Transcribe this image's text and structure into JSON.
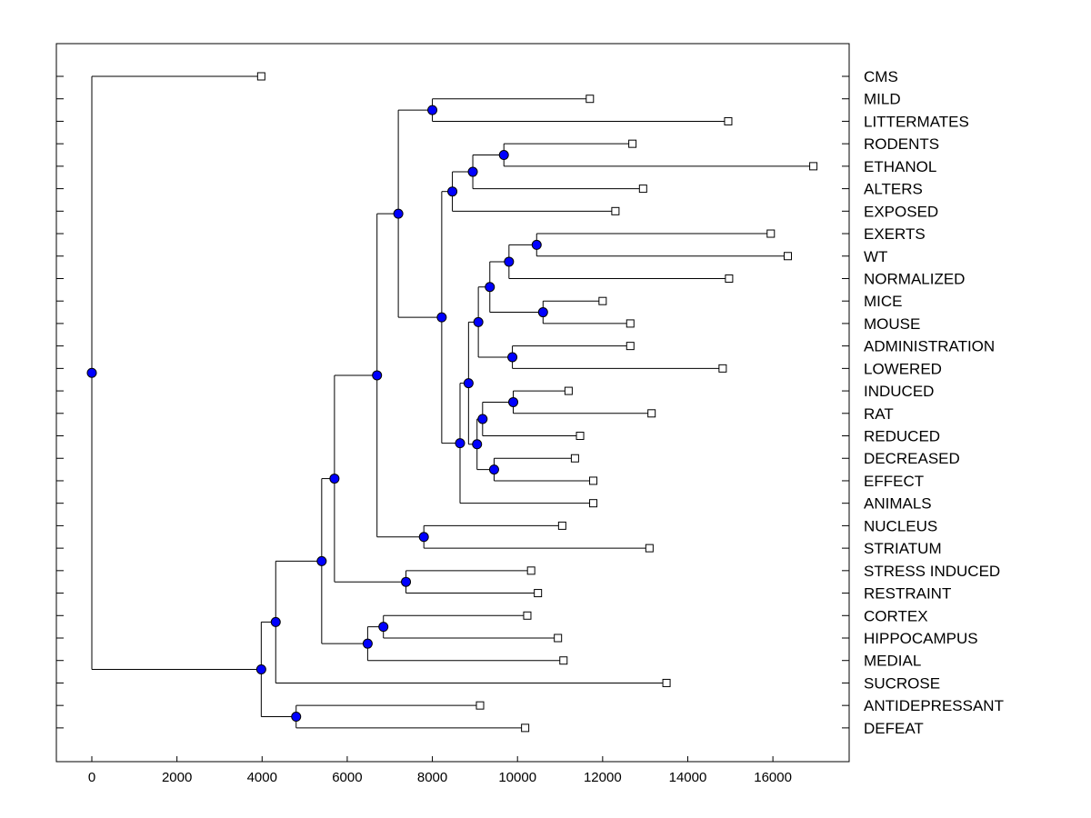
{
  "chart_data": {
    "type": "dendrogram",
    "title": "",
    "xlabel": "",
    "ylabel": "",
    "xlim": [
      -800,
      17800
    ],
    "x_ticks": [
      0,
      2000,
      4000,
      6000,
      8000,
      10000,
      12000,
      14000,
      16000
    ],
    "x_tick_labels": [
      "0",
      "2000",
      "4000",
      "6000",
      "8000",
      "10000",
      "12000",
      "14000",
      "16000"
    ],
    "leaves": [
      {
        "label": "CMS",
        "x": 3980
      },
      {
        "label": "MILD",
        "x": 11700
      },
      {
        "label": "LITTERMATES",
        "x": 14950
      },
      {
        "label": "RODENTS",
        "x": 12700
      },
      {
        "label": "ETHANOL",
        "x": 16950
      },
      {
        "label": "ALTERS",
        "x": 12950
      },
      {
        "label": "EXPOSED",
        "x": 12300
      },
      {
        "label": "EXERTS",
        "x": 15950
      },
      {
        "label": "WT",
        "x": 16350
      },
      {
        "label": "NORMALIZED",
        "x": 14970
      },
      {
        "label": "MICE",
        "x": 12000
      },
      {
        "label": "MOUSE",
        "x": 12650
      },
      {
        "label": "ADMINISTRATION",
        "x": 12650
      },
      {
        "label": "LOWERED",
        "x": 14820
      },
      {
        "label": "INDUCED",
        "x": 11200
      },
      {
        "label": "RAT",
        "x": 13150
      },
      {
        "label": "REDUCED",
        "x": 11470
      },
      {
        "label": "DECREASED",
        "x": 11350
      },
      {
        "label": "EFFECT",
        "x": 11780
      },
      {
        "label": "ANIMALS",
        "x": 11780
      },
      {
        "label": "NUCLEUS",
        "x": 11050
      },
      {
        "label": "STRIATUM",
        "x": 13100
      },
      {
        "label": "STRESS INDUCED",
        "x": 10320
      },
      {
        "label": "RESTRAINT",
        "x": 10480
      },
      {
        "label": "CORTEX",
        "x": 10230
      },
      {
        "label": "HIPPOCAMPUS",
        "x": 10950
      },
      {
        "label": "MEDIAL",
        "x": 11080
      },
      {
        "label": "SUCROSE",
        "x": 13500
      },
      {
        "label": "ANTIDEPRESSANT",
        "x": 9120
      },
      {
        "label": "DEFEAT",
        "x": 10180
      }
    ],
    "merges": [
      {
        "id": "n1",
        "x": 10450,
        "children": [
          "L7",
          "L8"
        ]
      },
      {
        "id": "n2",
        "x": 10600,
        "children": [
          "L10",
          "L11"
        ]
      },
      {
        "id": "n3",
        "x": 9680,
        "children": [
          "L3",
          "L4"
        ]
      },
      {
        "id": "n4",
        "x": 9880,
        "children": [
          "L12",
          "L13"
        ]
      },
      {
        "id": "n5",
        "x": 9900,
        "children": [
          "L14",
          "L15"
        ]
      },
      {
        "id": "n6",
        "x": 9800,
        "children": [
          "n1",
          "L9"
        ]
      },
      {
        "id": "n7",
        "x": 9450,
        "children": [
          "L17",
          "L18"
        ]
      },
      {
        "id": "n8",
        "x": 9350,
        "children": [
          "n6",
          "n2"
        ]
      },
      {
        "id": "n9",
        "x": 9180,
        "children": [
          "n5",
          "L16"
        ]
      },
      {
        "id": "n10",
        "x": 9080,
        "children": [
          "n8",
          "n4"
        ]
      },
      {
        "id": "n11",
        "x": 9050,
        "children": [
          "n9",
          "n7"
        ]
      },
      {
        "id": "n12",
        "x": 8950,
        "children": [
          "n3",
          "L5"
        ]
      },
      {
        "id": "n13",
        "x": 8850,
        "children": [
          "n10",
          "n11"
        ]
      },
      {
        "id": "n14",
        "x": 8650,
        "children": [
          "n13",
          "L19"
        ]
      },
      {
        "id": "n15",
        "x": 8470,
        "children": [
          "n12",
          "L6"
        ]
      },
      {
        "id": "n16",
        "x": 8220,
        "children": [
          "n15",
          "n14"
        ]
      },
      {
        "id": "n17",
        "x": 8000,
        "children": [
          "L1",
          "L2"
        ]
      },
      {
        "id": "n18",
        "x": 7800,
        "children": [
          "L20",
          "L21"
        ]
      },
      {
        "id": "n19",
        "x": 7200,
        "children": [
          "n17",
          "n16"
        ]
      },
      {
        "id": "n20",
        "x": 7380,
        "children": [
          "L22",
          "L23"
        ]
      },
      {
        "id": "n21",
        "x": 6850,
        "children": [
          "L24",
          "L25"
        ]
      },
      {
        "id": "n22",
        "x": 6700,
        "children": [
          "n19",
          "n18"
        ]
      },
      {
        "id": "n23",
        "x": 6480,
        "children": [
          "n21",
          "L26"
        ]
      },
      {
        "id": "n24",
        "x": 5700,
        "children": [
          "n22",
          "n20"
        ]
      },
      {
        "id": "n25",
        "x": 5400,
        "children": [
          "n24",
          "n23"
        ]
      },
      {
        "id": "n26",
        "x": 4800,
        "children": [
          "L28",
          "L29"
        ]
      },
      {
        "id": "n27",
        "x": 4320,
        "children": [
          "n25",
          "L27"
        ]
      },
      {
        "id": "n28",
        "x": 3980,
        "children": [
          "n27",
          "n26"
        ]
      },
      {
        "id": "n29",
        "x": 0,
        "children": [
          "L0",
          "n28"
        ]
      }
    ],
    "marker_color": "#0000ff"
  }
}
